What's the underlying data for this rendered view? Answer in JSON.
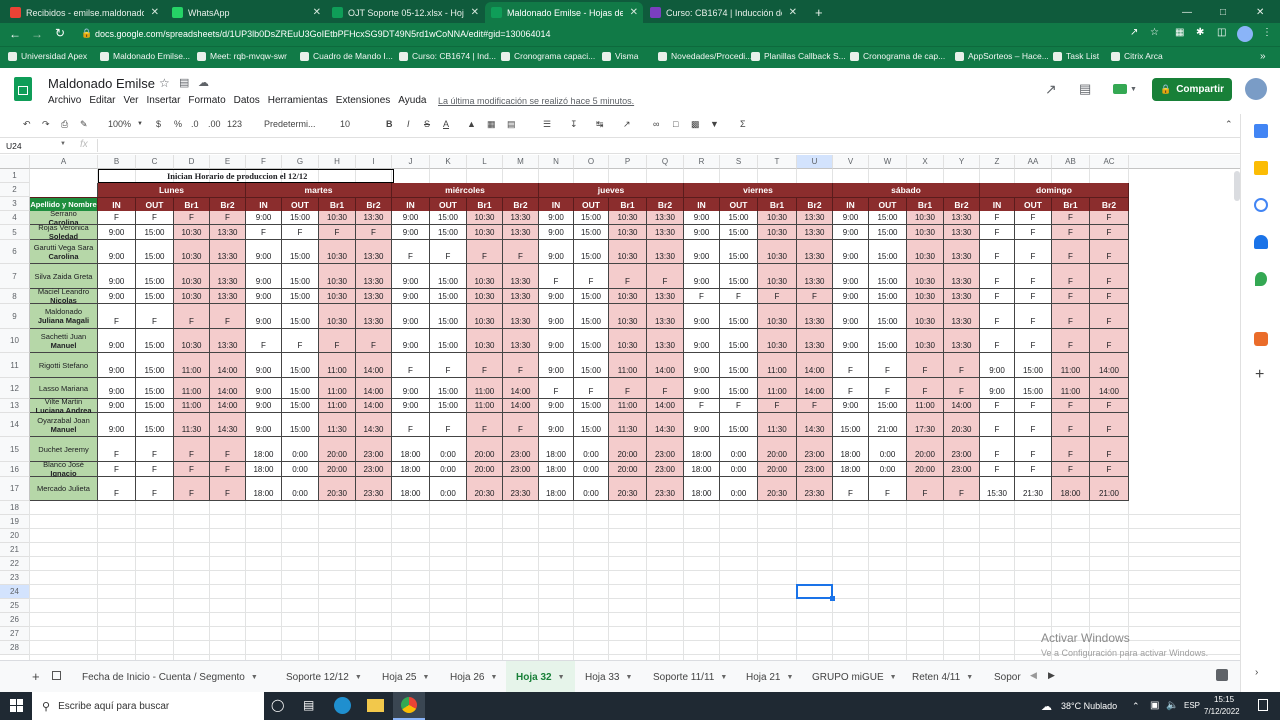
{
  "browser": {
    "tabs": [
      {
        "label": "Recibidos - emilse.maldonado@",
        "color": "#ea4335"
      },
      {
        "label": "WhatsApp",
        "color": "#25d366"
      },
      {
        "label": "OJT Soporte 05-12.xlsx - Hojas d",
        "color": "#0f9d58"
      },
      {
        "label": "Maldonado Emilse - Hojas de cál",
        "color": "#0f9d58"
      },
      {
        "label": "Curso: CB1674 | Inducción de So",
        "color": "#7b3fbf"
      }
    ],
    "new_tab": "+",
    "url": "docs.google.com/spreadsheets/d/1UP3lb0DsZREuU3GoIEtbPFHcxSG9DT49N5rd1wCoNNA/edit#gid=130064014",
    "bookmarks": [
      "Universidad Apex",
      "Maldonado Emilse...",
      "Meet: rqb-mvqw-swr",
      "Cuadro de Mando I...",
      "Curso: CB1674 | Ind...",
      "Cronograma capaci...",
      "Visma",
      "Novedades/Procedi...",
      "Planillas Callback S...",
      "Cronograma de cap...",
      "AppSorteos – Hace...",
      "Task List",
      "Citrix Arca"
    ]
  },
  "doc": {
    "title": "Maldonado Emilse",
    "menu": [
      "Archivo",
      "Editar",
      "Ver",
      "Insertar",
      "Formato",
      "Datos",
      "Herramientas",
      "Extensiones",
      "Ayuda"
    ],
    "last_edit": "La última modificación se realizó hace 5 minutos.",
    "share": "Compartir"
  },
  "toolbar": {
    "zoom": "100%",
    "currency": "$",
    "percent": "%",
    "dec1": ".0",
    "dec2": ".00",
    "numfmt": "123",
    "font": "Predetermi...",
    "size": "10",
    "bold": "B",
    "italic": "I"
  },
  "fx": {
    "cellref": "U24",
    "fx": "fx"
  },
  "columns": [
    "A",
    "B",
    "C",
    "D",
    "E",
    "F",
    "G",
    "H",
    "I",
    "J",
    "K",
    "L",
    "M",
    "N",
    "O",
    "P",
    "Q",
    "R",
    "S",
    "T",
    "U",
    "V",
    "W",
    "X",
    "Y",
    "Z",
    "AA",
    "AB",
    "AC"
  ],
  "rows": [
    "1",
    "2",
    "3",
    "4",
    "5",
    "6",
    "7",
    "8",
    "9",
    "10",
    "11",
    "12",
    "13",
    "14",
    "15",
    "16",
    "17",
    "18",
    "19",
    "20",
    "21",
    "22",
    "23",
    "24",
    "25",
    "26",
    "27",
    "28"
  ],
  "sheet": {
    "title": "Inician Horario de produccion el 12/12",
    "name_header": "Apellido y Nombre",
    "days": [
      "Lunes",
      "martes",
      "miércoles",
      "jueves",
      "viernes",
      "sábado",
      "domingo"
    ],
    "sub": [
      "IN",
      "OUT",
      "Br1",
      "Br2"
    ],
    "people": [
      {
        "name1": "Serrano",
        "name2": "Carolina",
        "v": [
          "F",
          "F",
          "F",
          "F",
          "9:00",
          "15:00",
          "10:30",
          "13:30",
          "9:00",
          "15:00",
          "10:30",
          "13:30",
          "9:00",
          "15:00",
          "10:30",
          "13:30",
          "9:00",
          "15:00",
          "10:30",
          "13:30",
          "9:00",
          "15:00",
          "10:30",
          "13:30",
          "F",
          "F",
          "F",
          "F"
        ]
      },
      {
        "name1": "Rojas Veronica",
        "name2": "Soledad",
        "v": [
          "9:00",
          "15:00",
          "10:30",
          "13:30",
          "F",
          "F",
          "F",
          "F",
          "9:00",
          "15:00",
          "10:30",
          "13:30",
          "9:00",
          "15:00",
          "10:30",
          "13:30",
          "9:00",
          "15:00",
          "10:30",
          "13:30",
          "9:00",
          "15:00",
          "10:30",
          "13:30",
          "F",
          "F",
          "F",
          "F"
        ]
      },
      {
        "name1": "Garutti Vega Sara",
        "name2": "Carolina",
        "v": [
          "9:00",
          "15:00",
          "10:30",
          "13:30",
          "9:00",
          "15:00",
          "10:30",
          "13:30",
          "F",
          "F",
          "F",
          "F",
          "9:00",
          "15:00",
          "10:30",
          "13:30",
          "9:00",
          "15:00",
          "10:30",
          "13:30",
          "9:00",
          "15:00",
          "10:30",
          "13:30",
          "F",
          "F",
          "F",
          "F"
        ]
      },
      {
        "name1": "Silva Zaida Greta",
        "name2": "",
        "v": [
          "9:00",
          "15:00",
          "10:30",
          "13:30",
          "9:00",
          "15:00",
          "10:30",
          "13:30",
          "9:00",
          "15:00",
          "10:30",
          "13:30",
          "F",
          "F",
          "F",
          "F",
          "9:00",
          "15:00",
          "10:30",
          "13:30",
          "9:00",
          "15:00",
          "10:30",
          "13:30",
          "F",
          "F",
          "F",
          "F"
        ]
      },
      {
        "name1": "Maciel Leandro",
        "name2": "Nicolas",
        "v": [
          "9:00",
          "15:00",
          "10:30",
          "13:30",
          "9:00",
          "15:00",
          "10:30",
          "13:30",
          "9:00",
          "15:00",
          "10:30",
          "13:30",
          "9:00",
          "15:00",
          "10:30",
          "13:30",
          "F",
          "F",
          "F",
          "F",
          "9:00",
          "15:00",
          "10:30",
          "13:30",
          "F",
          "F",
          "F",
          "F"
        ]
      },
      {
        "name1": "Maldonado",
        "name2": "Juliana Magali",
        "v": [
          "F",
          "F",
          "F",
          "F",
          "9:00",
          "15:00",
          "10:30",
          "13:30",
          "9:00",
          "15:00",
          "10:30",
          "13:30",
          "9:00",
          "15:00",
          "10:30",
          "13:30",
          "9:00",
          "15:00",
          "10:30",
          "13:30",
          "9:00",
          "15:00",
          "10:30",
          "13:30",
          "F",
          "F",
          "F",
          "F"
        ]
      },
      {
        "name1": "Sachetti Juan",
        "name2": "Manuel",
        "v": [
          "9:00",
          "15:00",
          "10:30",
          "13:30",
          "F",
          "F",
          "F",
          "F",
          "9:00",
          "15:00",
          "10:30",
          "13:30",
          "9:00",
          "15:00",
          "10:30",
          "13:30",
          "9:00",
          "15:00",
          "10:30",
          "13:30",
          "9:00",
          "15:00",
          "10:30",
          "13:30",
          "F",
          "F",
          "F",
          "F"
        ]
      },
      {
        "name1": "Rigotti Stefano",
        "name2": "",
        "v": [
          "9:00",
          "15:00",
          "11:00",
          "14:00",
          "9:00",
          "15:00",
          "11:00",
          "14:00",
          "F",
          "F",
          "F",
          "F",
          "9:00",
          "15:00",
          "11:00",
          "14:00",
          "9:00",
          "15:00",
          "11:00",
          "14:00",
          "F",
          "F",
          "F",
          "F",
          "9:00",
          "15:00",
          "11:00",
          "14:00"
        ]
      },
      {
        "name1": "Lasso Mariana",
        "name2": "",
        "v": [
          "9:00",
          "15:00",
          "11:00",
          "14:00",
          "9:00",
          "15:00",
          "11:00",
          "14:00",
          "9:00",
          "15:00",
          "11:00",
          "14:00",
          "F",
          "F",
          "F",
          "F",
          "9:00",
          "15:00",
          "11:00",
          "14:00",
          "F",
          "F",
          "F",
          "F",
          "9:00",
          "15:00",
          "11:00",
          "14:00"
        ]
      },
      {
        "name1": "Vilte Martin",
        "name2": "Luciana Andrea",
        "v": [
          "9:00",
          "15:00",
          "11:00",
          "14:00",
          "9:00",
          "15:00",
          "11:00",
          "14:00",
          "9:00",
          "15:00",
          "11:00",
          "14:00",
          "9:00",
          "15:00",
          "11:00",
          "14:00",
          "F",
          "F",
          "F",
          "F",
          "9:00",
          "15:00",
          "11:00",
          "14:00",
          "F",
          "F",
          "F",
          "F"
        ]
      },
      {
        "name1": "Oyarzabal Joan",
        "name2": "Manuel",
        "v": [
          "9:00",
          "15:00",
          "11:30",
          "14:30",
          "9:00",
          "15:00",
          "11:30",
          "14:30",
          "F",
          "F",
          "F",
          "F",
          "9:00",
          "15:00",
          "11:30",
          "14:30",
          "9:00",
          "15:00",
          "11:30",
          "14:30",
          "15:00",
          "21:00",
          "17:30",
          "20:30",
          "F",
          "F",
          "F",
          "F"
        ]
      },
      {
        "name1": "Duchet Jeremy",
        "name2": "",
        "v": [
          "F",
          "F",
          "F",
          "F",
          "18:00",
          "0:00",
          "20:00",
          "23:00",
          "18:00",
          "0:00",
          "20:00",
          "23:00",
          "18:00",
          "0:00",
          "20:00",
          "23:00",
          "18:00",
          "0:00",
          "20:00",
          "23:00",
          "18:00",
          "0:00",
          "20:00",
          "23:00",
          "F",
          "F",
          "F",
          "F"
        ]
      },
      {
        "name1": "Blanco José",
        "name2": "Ignacio",
        "v": [
          "F",
          "F",
          "F",
          "F",
          "18:00",
          "0:00",
          "20:00",
          "23:00",
          "18:00",
          "0:00",
          "20:00",
          "23:00",
          "18:00",
          "0:00",
          "20:00",
          "23:00",
          "18:00",
          "0:00",
          "20:00",
          "23:00",
          "18:00",
          "0:00",
          "20:00",
          "23:00",
          "F",
          "F",
          "F",
          "F"
        ]
      },
      {
        "name1": "Mercado Julieta",
        "name2": "",
        "v": [
          "F",
          "F",
          "F",
          "F",
          "18:00",
          "0:00",
          "20:30",
          "23:30",
          "18:00",
          "0:00",
          "20:30",
          "23:30",
          "18:00",
          "0:00",
          "20:30",
          "23:30",
          "18:00",
          "0:00",
          "20:30",
          "23:30",
          "F",
          "F",
          "F",
          "F",
          "15:30",
          "21:30",
          "18:00",
          "21:00"
        ]
      }
    ]
  },
  "sheet_tabs": [
    "Fecha de Inicio - Cuenta / Segmento",
    "Soporte 12/12",
    "Hoja 25",
    "Hoja 26",
    "Hoja 32",
    "Hoja 33",
    "Soporte 11/11",
    "Hoja 21",
    "GRUPO miGUE",
    "Reten 4/11",
    "Sopor"
  ],
  "active_sheet": "Hoja 32",
  "watermark": {
    "line1": "Activar Windows",
    "line2": "Ve a Configuración para activar Windows."
  },
  "taskbar": {
    "search": "Escribe aquí para buscar",
    "weather": "38°C  Nublado",
    "lang": "ESP",
    "time": "15:15",
    "date": "7/12/2022"
  },
  "colors": {
    "header_dark": "#8b2d2d",
    "name_green": "#b6d7a8",
    "break_pink": "#f4cccc",
    "chrome_green": "#117a47",
    "sheets_green": "#188038"
  }
}
